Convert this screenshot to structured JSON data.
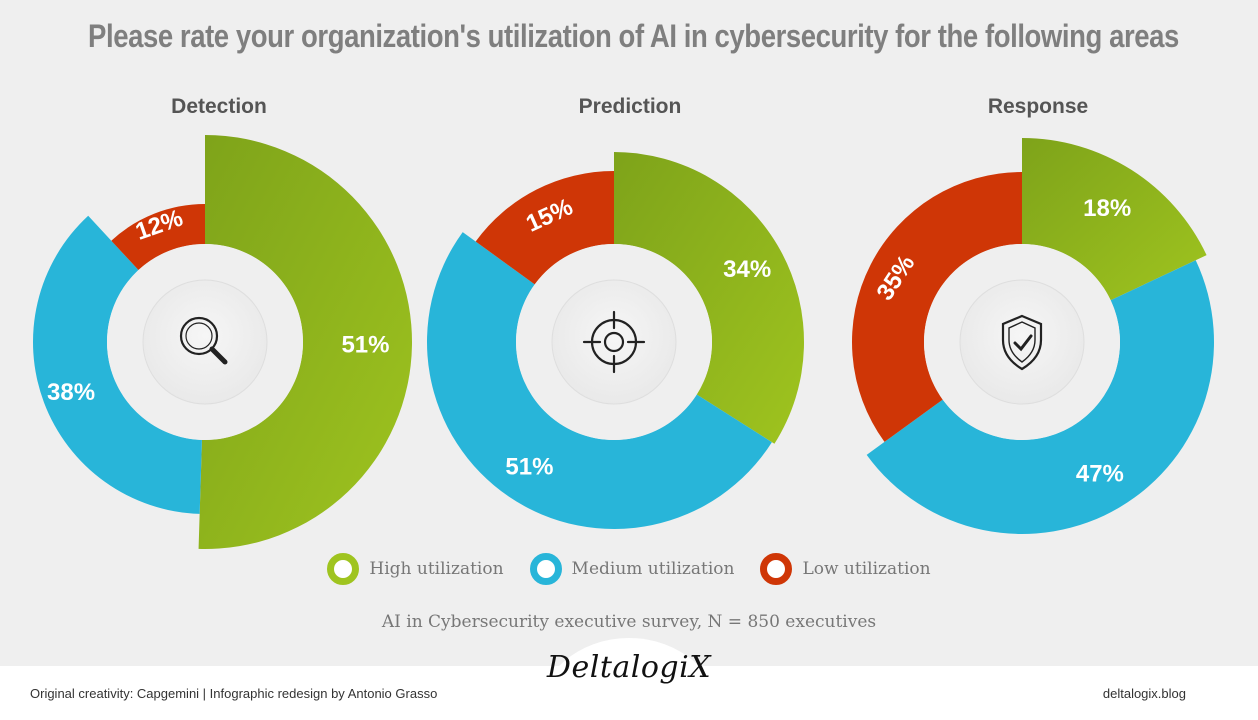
{
  "title": "Please rate your organization's utilization of AI in cybersecurity for the following areas",
  "colors": {
    "high": "#9fc41f",
    "high_dark": "#7ea31a",
    "medium": "#28b5d9",
    "low": "#cf3606",
    "hole": "#e9e9e9",
    "background": "#efefef"
  },
  "chart_data": [
    {
      "type": "pie",
      "title": "Detection",
      "icon": "magnifier-icon",
      "categories": [
        "High utilization",
        "Medium utilization",
        "Low utilization"
      ],
      "values": [
        51,
        38,
        12
      ],
      "labels": [
        "51%",
        "38%",
        "12%"
      ]
    },
    {
      "type": "pie",
      "title": "Prediction",
      "icon": "target-icon",
      "categories": [
        "High utilization",
        "Medium utilization",
        "Low utilization"
      ],
      "values": [
        34,
        51,
        15
      ],
      "labels": [
        "34%",
        "51%",
        "15%"
      ]
    },
    {
      "type": "pie",
      "title": "Response",
      "icon": "shield-check-icon",
      "categories": [
        "High utilization",
        "Medium utilization",
        "Low utilization"
      ],
      "values": [
        18,
        47,
        35
      ],
      "labels": [
        "18%",
        "47%",
        "35%"
      ]
    }
  ],
  "legend": [
    {
      "label": "High utilization",
      "key": "high"
    },
    {
      "label": "Medium utilization",
      "key": "medium"
    },
    {
      "label": "Low utilization",
      "key": "low"
    }
  ],
  "note": "AI in Cybersecurity executive survey, N = 850 executives",
  "footer": {
    "credit": "Original creativity: Capgemini | Infographic redesign by Antonio Grasso",
    "logo": "DeltalogiX",
    "site": "deltalogix.blog"
  }
}
